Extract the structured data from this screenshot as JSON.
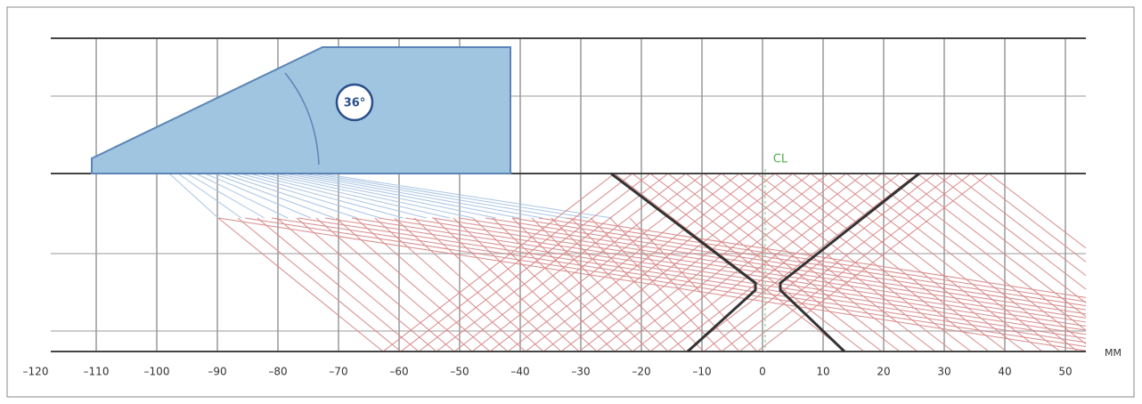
{
  "axis": {
    "ticks": [
      {
        "value": -120,
        "label": "–120"
      },
      {
        "value": -110,
        "label": "–110"
      },
      {
        "value": -100,
        "label": "–100"
      },
      {
        "value": -90,
        "label": "–90"
      },
      {
        "value": -80,
        "label": "–80"
      },
      {
        "value": -70,
        "label": "–70"
      },
      {
        "value": -60,
        "label": "–60"
      },
      {
        "value": -50,
        "label": "–50"
      },
      {
        "value": -40,
        "label": "–40"
      },
      {
        "value": -30,
        "label": "–30"
      },
      {
        "value": -20,
        "label": "–20"
      },
      {
        "value": -10,
        "label": "–10"
      },
      0,
      10,
      20,
      30,
      40,
      50
    ],
    "unit": "MM"
  },
  "wedge_angle": "36°",
  "centerline_label": "CL"
}
